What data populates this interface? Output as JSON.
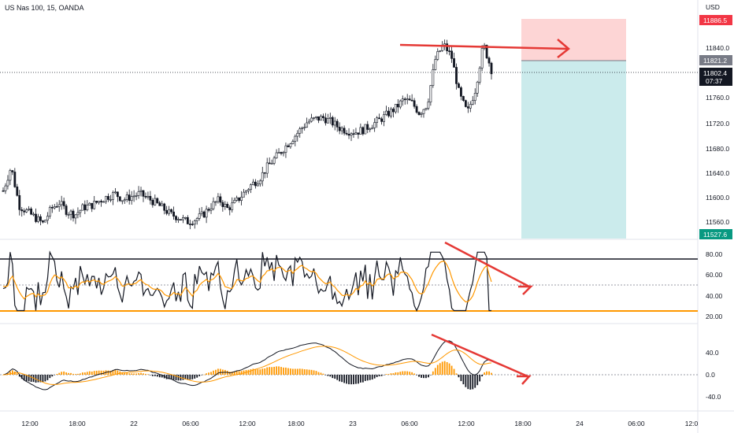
{
  "header": {
    "symbol_title": "US Nas 100, 15, OANDA",
    "currency": "USD"
  },
  "colors": {
    "up": "#131722",
    "down": "#131722",
    "grid": "#f0f3fa",
    "stop_zone": "#fdd5d5",
    "target_zone": "#cbebec",
    "arrow": "#e53935",
    "orange": "#ff9800",
    "rsi_line": "#131722",
    "tag_red": "#f23645",
    "tag_gray": "#787b86",
    "tag_black": "#131722",
    "tag_teal": "#089981"
  },
  "price_axis": {
    "ticks": [
      "11840.0",
      "11800.0",
      "11760.0",
      "11720.0",
      "11680.0",
      "11640.0",
      "11600.0",
      "11560.0"
    ]
  },
  "price_tags": {
    "stop": "11886.5",
    "entry": "11821.2",
    "current": "11802.4",
    "countdown": "07:37",
    "target": "11527.6"
  },
  "rsi_axis": {
    "ticks": [
      "80.00",
      "60.00",
      "40.00",
      "20.00"
    ]
  },
  "macd_axis": {
    "ticks": [
      "40.0",
      "0.0",
      "-40.0"
    ]
  },
  "time_axis": {
    "ticks": [
      "12:00",
      "18:00",
      "22",
      "06:00",
      "12:00",
      "18:00",
      "23",
      "06:00",
      "12:00",
      "18:00",
      "24",
      "06:00",
      "12:0"
    ]
  },
  "chart_data": {
    "type": "candlestick",
    "title": "US Nas 100, 15, OANDA",
    "ylim": [
      11520,
      11890
    ],
    "close_path": [
      11600,
      11640,
      11575,
      11565,
      11555,
      11545,
      11570,
      11580,
      11565,
      11560,
      11572,
      11575,
      11583,
      11590,
      11595,
      11585,
      11590,
      11595,
      11588,
      11580,
      11570,
      11560,
      11555,
      11548,
      11552,
      11560,
      11575,
      11585,
      11570,
      11580,
      11595,
      11610,
      11620,
      11640,
      11655,
      11670,
      11685,
      11700,
      11715,
      11720,
      11722,
      11715,
      11705,
      11700,
      11698,
      11702,
      11710,
      11718,
      11728,
      11738,
      11752,
      11748,
      11730,
      11745,
      11820,
      11845,
      11825,
      11760,
      11730,
      11770,
      11845,
      11802.4
    ],
    "levels": {
      "stop": 11886.5,
      "entry": 11821.2,
      "current": 11802.4,
      "target": 11527.6
    },
    "rsi": {
      "overbought": 75,
      "oversold": 25,
      "mid": 50
    },
    "macd": {
      "zero": 0
    }
  }
}
